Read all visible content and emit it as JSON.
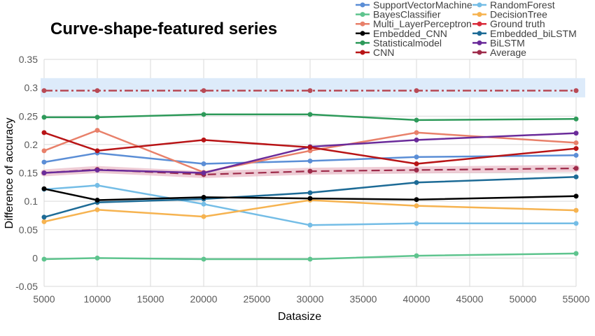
{
  "chart_data": {
    "type": "line",
    "title": "Curve-shape-featured series",
    "xlabel": "Datasize",
    "ylabel": "Difference of accuracy",
    "xlim": [
      5000,
      55000
    ],
    "ylim": [
      -0.05,
      0.35
    ],
    "x_ticks": [
      5000,
      10000,
      15000,
      20000,
      25000,
      30000,
      35000,
      40000,
      45000,
      50000,
      55000
    ],
    "y_ticks": [
      -0.05,
      0,
      0.05,
      0.1,
      0.15,
      0.2,
      0.25,
      0.3,
      0.35
    ],
    "x_tick_labels": [
      "5000",
      "10000",
      "15000",
      "20000",
      "25000",
      "30000",
      "35000",
      "40000",
      "45000",
      "50000",
      "55000"
    ],
    "y_tick_labels": [
      "-0.05",
      "0",
      "0.05",
      "0.1",
      "0.15",
      "0.2",
      "0.25",
      "0.3",
      "0.35"
    ],
    "grid": true,
    "legend_position": "top-right",
    "x": [
      5000,
      10000,
      20000,
      30000,
      40000,
      55000
    ],
    "ground_truth_band": [
      0.283,
      0.317
    ],
    "series": [
      {
        "name": "SupportVectorMachine",
        "color": "#5b8ed6",
        "values": [
          0.169,
          0.185,
          0.166,
          0.171,
          0.178,
          0.181
        ]
      },
      {
        "name": "RandomForest",
        "color": "#74bde6",
        "values": [
          0.121,
          0.128,
          0.095,
          0.058,
          0.061,
          0.061
        ]
      },
      {
        "name": "BayesClassifier",
        "color": "#5ec48e",
        "values": [
          -0.002,
          0.0,
          -0.002,
          -0.002,
          0.004,
          0.008
        ]
      },
      {
        "name": "DecisionTree",
        "color": "#f6b350",
        "values": [
          0.064,
          0.085,
          0.073,
          0.102,
          0.092,
          0.084
        ]
      },
      {
        "name": "Multi_LayerPerceptron",
        "color": "#e8806a",
        "values": [
          0.189,
          0.225,
          0.151,
          0.189,
          0.221,
          0.203
        ]
      },
      {
        "name": "Ground truth",
        "color": "#d92b3a",
        "values": [
          0.295,
          0.295,
          0.295,
          0.295,
          0.295,
          0.295
        ]
      },
      {
        "name": "Embedded_CNN",
        "color": "#000000",
        "values": [
          0.122,
          0.102,
          0.107,
          0.105,
          0.103,
          0.109
        ]
      },
      {
        "name": "Embedded_biLSTM",
        "color": "#1d6b96",
        "values": [
          0.072,
          0.098,
          0.104,
          0.115,
          0.133,
          0.143
        ]
      },
      {
        "name": "Statisticalmodel",
        "color": "#2e9a5a",
        "values": [
          0.248,
          0.248,
          0.253,
          0.253,
          0.243,
          0.245
        ]
      },
      {
        "name": "BiLSTM",
        "color": "#6a2b9a",
        "values": [
          0.15,
          0.155,
          0.15,
          0.196,
          0.208,
          0.22
        ]
      },
      {
        "name": "CNN",
        "color": "#b81416",
        "values": [
          0.221,
          0.189,
          0.208,
          0.195,
          0.166,
          0.193
        ]
      },
      {
        "name": "Average",
        "color": "#9e2b4a",
        "values": [
          0.15,
          0.156,
          0.147,
          0.153,
          0.155,
          0.158
        ]
      }
    ]
  }
}
